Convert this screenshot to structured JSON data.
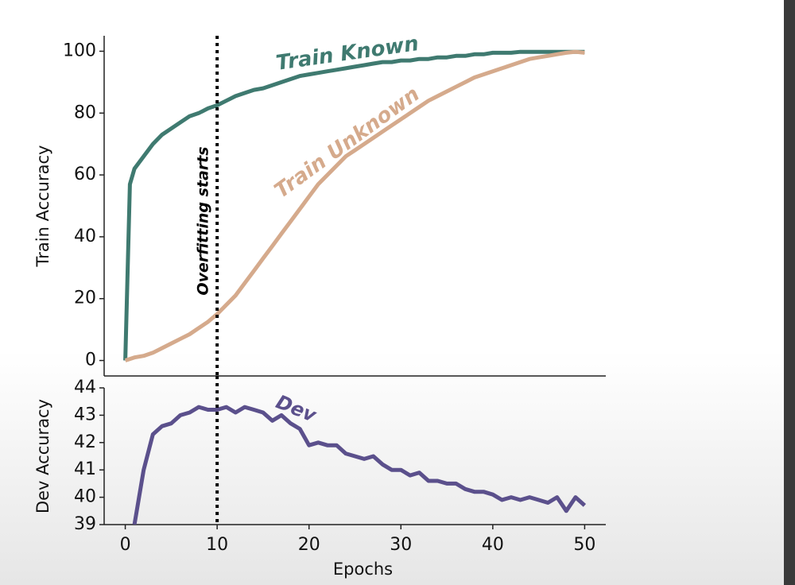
{
  "chart_data": [
    {
      "type": "line",
      "ylabel": "Train Accuracy",
      "x": [
        0,
        0.5,
        1,
        2,
        3,
        4,
        5,
        6,
        7,
        8,
        9,
        10,
        11,
        12,
        13,
        14,
        15,
        16,
        17,
        18,
        19,
        20,
        21,
        22,
        23,
        24,
        25,
        26,
        27,
        28,
        29,
        30,
        31,
        32,
        33,
        34,
        35,
        36,
        37,
        38,
        39,
        40,
        41,
        42,
        43,
        44,
        45,
        46,
        47,
        48,
        49,
        50
      ],
      "series": [
        {
          "name": "Train Known",
          "color": "#3f7a70",
          "values": [
            0,
            57,
            62,
            66,
            70,
            73,
            75,
            77,
            79,
            80,
            81.5,
            82.5,
            84,
            85.5,
            86.5,
            87.5,
            88,
            89,
            90,
            91,
            92,
            92.5,
            93,
            93.5,
            94,
            94.5,
            95,
            95.5,
            96,
            96.5,
            96.5,
            97,
            97,
            97.5,
            97.5,
            98,
            98,
            98.5,
            98.5,
            99,
            99,
            99.5,
            99.5,
            99.5,
            99.8,
            99.8,
            99.8,
            99.8,
            99.8,
            99.8,
            99.8,
            99.8
          ]
        },
        {
          "name": "Train Unknown",
          "color": "#d5aa8c",
          "values": [
            0,
            0.5,
            1,
            1.5,
            2.5,
            4,
            5.5,
            7,
            8.5,
            10.5,
            12.5,
            15,
            18,
            21,
            25,
            29,
            33,
            37,
            41,
            45,
            49,
            53,
            57,
            60,
            63,
            66,
            68,
            70,
            72,
            74,
            76,
            78,
            80,
            82,
            84,
            85.5,
            87,
            88.5,
            90,
            91.5,
            92.5,
            93.5,
            94.5,
            95.5,
            96.5,
            97.5,
            98,
            98.5,
            99,
            99.5,
            99.8,
            99.5
          ]
        }
      ],
      "xlim": [
        -2.3,
        52.3
      ],
      "ylim": [
        -5,
        105
      ],
      "yticks": [
        0,
        20,
        40,
        60,
        80,
        100
      ],
      "vline": 10,
      "annotation": "Overfitting starts"
    },
    {
      "type": "line",
      "ylabel": "Dev Accuracy",
      "xlabel": "Epochs",
      "x": [
        1,
        2,
        3,
        4,
        5,
        6,
        7,
        8,
        9,
        10,
        11,
        12,
        13,
        14,
        15,
        16,
        17,
        18,
        19,
        20,
        21,
        22,
        23,
        24,
        25,
        26,
        27,
        28,
        29,
        30,
        31,
        32,
        33,
        34,
        35,
        36,
        37,
        38,
        39,
        40,
        41,
        42,
        43,
        44,
        45,
        46,
        47,
        48,
        49,
        50
      ],
      "series": [
        {
          "name": "Dev",
          "color": "#5b508c",
          "values": [
            39.0,
            41.0,
            42.3,
            42.6,
            42.7,
            43.0,
            43.1,
            43.3,
            43.2,
            43.2,
            43.3,
            43.1,
            43.3,
            43.2,
            43.1,
            42.8,
            43.0,
            42.7,
            42.5,
            41.9,
            42.0,
            41.9,
            41.9,
            41.6,
            41.5,
            41.4,
            41.5,
            41.2,
            41.0,
            41.0,
            40.8,
            40.9,
            40.6,
            40.6,
            40.5,
            40.5,
            40.3,
            40.2,
            40.2,
            40.1,
            39.9,
            40.0,
            39.9,
            40.0,
            39.9,
            39.8,
            40.0,
            39.5,
            40.0,
            39.7
          ]
        }
      ],
      "xlim": [
        -2.3,
        52.3
      ],
      "ylim": [
        39,
        44
      ],
      "yticks": [
        39,
        40,
        41,
        42,
        43,
        44
      ],
      "xticks": [
        0,
        10,
        20,
        30,
        40,
        50
      ],
      "vline": 10
    }
  ]
}
